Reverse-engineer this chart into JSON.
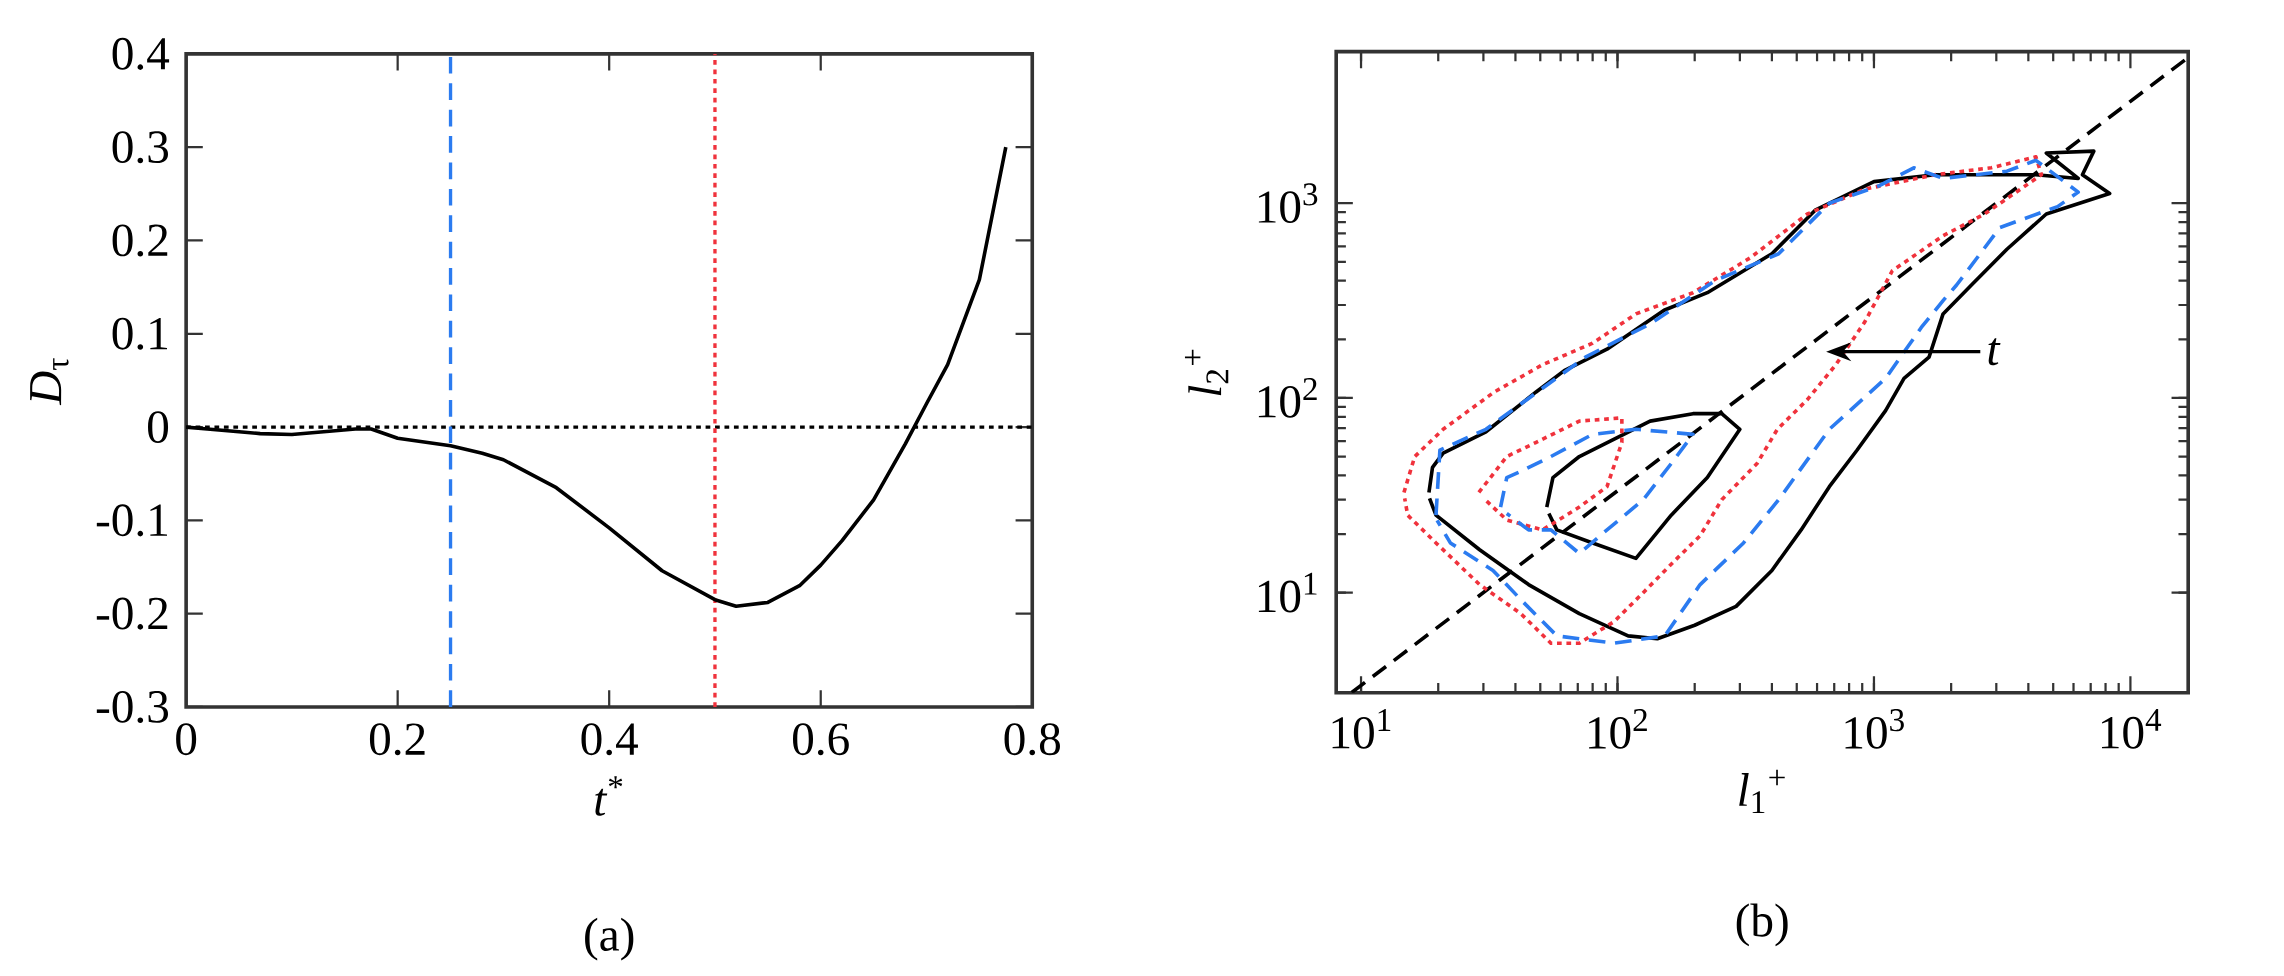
{
  "chart_data": [
    {
      "type": "line",
      "xlabel": "*t*$^{*}$",
      "ylabel": "*D*$_{τ}$",
      "annotations": [
        "(a)"
      ],
      "x": [
        0,
        0.02,
        0.05,
        0.07,
        0.1,
        0.13,
        0.16,
        0.175,
        0.2,
        0.25,
        0.28,
        0.3,
        0.35,
        0.4,
        0.45,
        0.5,
        0.52,
        0.55,
        0.58,
        0.6,
        0.62,
        0.65,
        0.68,
        0.7,
        0.72,
        0.75,
        0.775
      ],
      "series": [
        {
          "color": "#000000",
          "line_style": "solid",
          "values": [
            0,
            -0.002,
            -0.005,
            -0.007,
            -0.008,
            -0.005,
            -0.002,
            -0.002,
            -0.012,
            -0.02,
            -0.028,
            -0.035,
            -0.065,
            -0.108,
            -0.154,
            -0.185,
            -0.192,
            -0.188,
            -0.17,
            -0.148,
            -0.122,
            -0.078,
            -0.018,
            0.025,
            0.067,
            0.158,
            0.3
          ]
        }
      ],
      "xlim": [
        0,
        0.8
      ],
      "ylim": [
        -0.3,
        0.4
      ],
      "xticks": [
        0,
        0.2,
        0.4,
        0.6,
        0.8
      ],
      "yticks": [
        -0.3,
        -0.2,
        -0.1,
        0,
        0.1,
        0.2,
        0.3,
        0.4
      ],
      "ref_lines": [
        {
          "axis": "y",
          "value": 0,
          "color": "#000000",
          "line_style": "dotted"
        },
        {
          "axis": "x",
          "value": 0.25,
          "color": "#2b7bf0",
          "line_style": "dashed"
        },
        {
          "axis": "x",
          "value": 0.5,
          "color": "#f0323c",
          "line_style": "dotted"
        }
      ]
    },
    {
      "type": "line",
      "log": "xy",
      "xlabel": "*l*$_{1}$$^{+}$",
      "ylabel": "*l*$_{2}$$^{+}$",
      "annotations": [
        "(b)",
        "*t*"
      ],
      "xlim": [
        8,
        16800
      ],
      "ylim": [
        3.06,
        6000
      ],
      "xticks": [
        {
          "value": 10,
          "label": "10$^{1}$"
        },
        {
          "value": 100,
          "label": "10$^{2}$"
        },
        {
          "value": 1000,
          "label": "10$^{3}$"
        },
        {
          "value": 10000,
          "label": "10$^{4}$"
        }
      ],
      "yticks": [
        {
          "value": 10,
          "label": "10$^{1}$"
        },
        {
          "value": 100,
          "label": "10$^{2}$"
        },
        {
          "value": 1000,
          "label": "10$^{3}$"
        }
      ],
      "series": [
        {
          "color": "#000000",
          "line_style": "dashed",
          "x": [
            9.2,
            16800
          ],
          "values": [
            3.07,
            5600
          ]
        },
        {
          "color": "#000000",
          "line_style": "solid",
          "x": [
            18.4,
            19,
            20.9,
            30.7,
            48,
            62,
            91,
            152,
            224,
            400,
            590,
            1000,
            1730,
            4280,
            6260,
            4700,
            7200,
            6500,
            8300,
            4700,
            3300,
            2400,
            1860,
            1640,
            1310,
            1110,
            860,
            670,
            520,
            400,
            290,
            200,
            143,
            110,
            71,
            45,
            29,
            19.6,
            18.5
          ],
          "values": [
            32.7,
            44,
            52,
            67,
            107,
            138,
            178,
            282,
            347,
            550,
            920,
            1290,
            1400,
            1400,
            1340,
            1810,
            1850,
            1400,
            1120,
            880,
            580,
            380,
            270,
            162,
            126,
            86,
            54,
            35,
            21,
            13,
            8.5,
            6.8,
            5.8,
            6.0,
            7.8,
            11,
            16.6,
            25,
            30.5
          ]
        },
        {
          "color": "#f0323c",
          "line_style": "dotted",
          "x": [
            14.7,
            16.2,
            20.9,
            33,
            51,
            80,
            118,
            197,
            330,
            550,
            920,
            1730,
            2870,
            4280,
            4500,
            2700,
            1860,
            1180,
            920,
            710,
            550,
            420,
            350,
            255,
            210,
            162,
            126,
            97,
            71,
            55,
            42,
            29,
            19.6,
            15.2,
            14.8
          ],
          "values": [
            32.7,
            50,
            69,
            107,
            148,
            191,
            270,
            347,
            525,
            880,
            1180,
            1400,
            1520,
            1730,
            1400,
            880,
            680,
            450,
            245,
            148,
            98,
            69,
            46,
            30,
            19.6,
            14,
            10,
            7.1,
            5.5,
            5.5,
            7.8,
            11,
            18,
            25,
            30.5
          ]
        },
        {
          "color": "#2b7bf0",
          "line_style": "dashed",
          "x": [
            19.6,
            20.3,
            30.7,
            51,
            75,
            134,
            240,
            425,
            670,
            1050,
            1430,
            1860,
            3300,
            4280,
            6260,
            5200,
            3100,
            2100,
            1860,
            1530,
            1110,
            670,
            425,
            310,
            210,
            153,
            97,
            58,
            42,
            32.7,
            22.3,
            19.8
          ],
          "values": [
            25,
            54,
            69,
            112,
            162,
            240,
            400,
            550,
            1000,
            1230,
            1520,
            1340,
            1460,
            1660,
            1140,
            960,
            750,
            380,
            316,
            230,
            126,
            69,
            30,
            18,
            11,
            6.0,
            5.5,
            6.0,
            9.2,
            13,
            18,
            23.5
          ]
        },
        {
          "color": "#000000",
          "line_style": "solid",
          "x": [
            53,
            56,
            71,
            134,
            197,
            255,
            300,
            224,
            162,
            118,
            80,
            58,
            54
          ],
          "values": [
            27.5,
            39,
            50,
            76,
            83,
            83,
            69,
            39,
            25,
            15,
            18,
            21,
            25.5
          ]
        },
        {
          "color": "#f0323c",
          "line_style": "dotted",
          "x": [
            28.8,
            37,
            48,
            71,
            104,
            104,
            91,
            71,
            51,
            37,
            30.5
          ],
          "values": [
            32.7,
            50,
            59,
            76,
            79,
            59,
            35,
            27.5,
            21,
            23.6,
            30
          ]
        },
        {
          "color": "#2b7bf0",
          "line_style": "dashed",
          "x": [
            35,
            37,
            42,
            55,
            80,
            118,
            197,
            162,
            126,
            91,
            71,
            55,
            45,
            37
          ],
          "values": [
            27.5,
            39,
            42,
            50,
            65,
            69,
            65,
            46,
            30,
            21,
            15.9,
            21,
            21,
            25.5
          ]
        }
      ]
    }
  ]
}
